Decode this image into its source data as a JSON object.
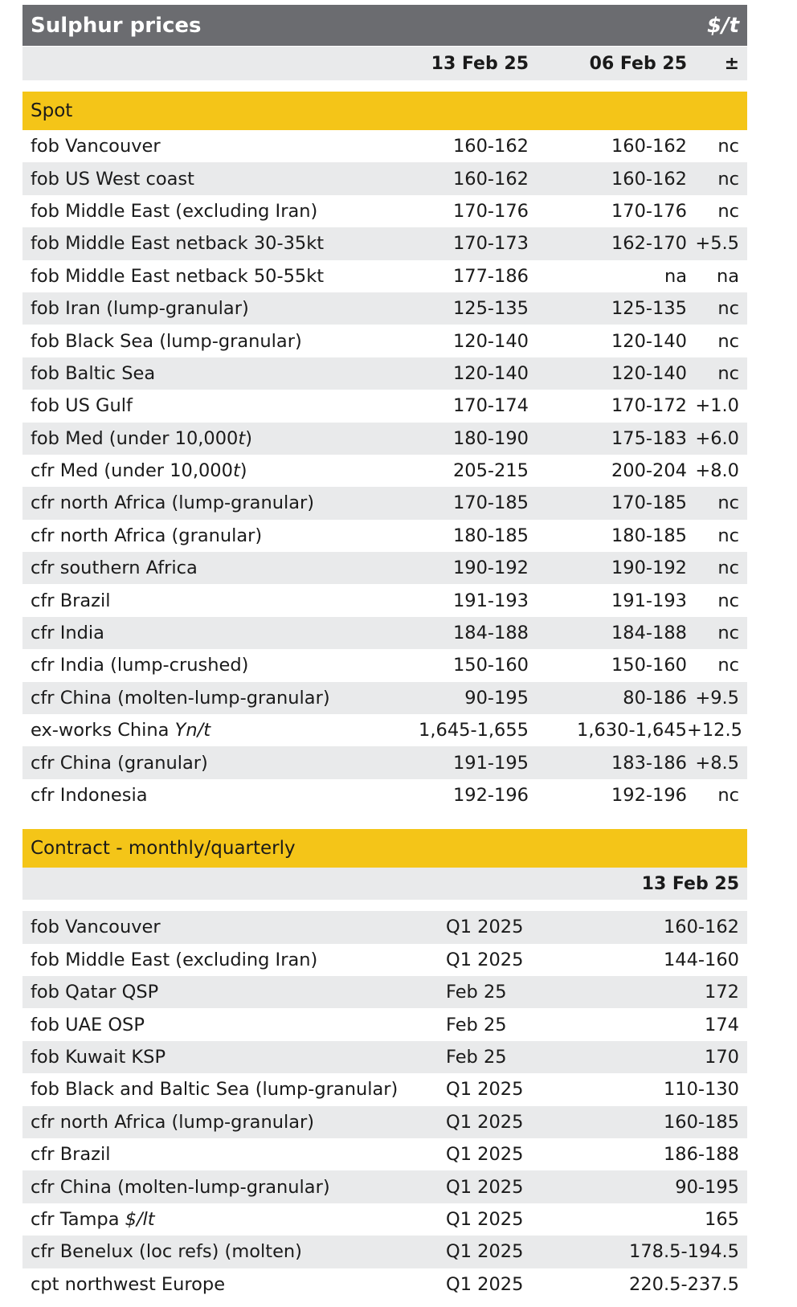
{
  "title": "Sulphur prices",
  "unit": "$/t",
  "columns": {
    "current": "13 Feb 25",
    "previous": "06 Feb 25",
    "change": "±"
  },
  "spot": {
    "label": "Spot",
    "rows": [
      {
        "name": "fob Vancouver",
        "cur": "160-162",
        "prev": "160-162",
        "chg": "nc"
      },
      {
        "name": "fob US West coast",
        "cur": "160-162",
        "prev": "160-162",
        "chg": "nc"
      },
      {
        "name": "fob Middle East (excluding Iran)",
        "cur": "170-176",
        "prev": "170-176",
        "chg": "nc"
      },
      {
        "name": "fob Middle East netback 30-35kt",
        "cur": "170-173",
        "prev": "162-170",
        "chg": "+5.5"
      },
      {
        "name": "fob Middle East netback 50-55kt",
        "cur": "177-186",
        "prev": "na",
        "chg": "na"
      },
      {
        "name": "fob Iran (lump-granular)",
        "cur": "125-135",
        "prev": "125-135",
        "chg": "nc"
      },
      {
        "name": "fob Black Sea (lump-granular)",
        "cur": "120-140",
        "prev": "120-140",
        "chg": "nc"
      },
      {
        "name": "fob Baltic Sea",
        "cur": "120-140",
        "prev": "120-140",
        "chg": "nc"
      },
      {
        "name": "fob US Gulf",
        "cur": "170-174",
        "prev": "170-172",
        "chg": "+1.0"
      },
      {
        "name": "fob Med (under 10,000",
        "name_it": "t",
        "name_end": ")",
        "cur": "180-190",
        "prev": "175-183",
        "chg": "+6.0"
      },
      {
        "name": "cfr Med (under 10,000",
        "name_it": "t",
        "name_end": ")",
        "cur": "205-215",
        "prev": "200-204",
        "chg": "+8.0"
      },
      {
        "name": "cfr north Africa (lump-granular)",
        "cur": "170-185",
        "prev": "170-185",
        "chg": "nc"
      },
      {
        "name": "cfr north Africa (granular)",
        "cur": "180-185",
        "prev": "180-185",
        "chg": "nc"
      },
      {
        "name": "cfr southern Africa",
        "cur": "190-192",
        "prev": "190-192",
        "chg": "nc"
      },
      {
        "name": "cfr Brazil",
        "cur": "191-193",
        "prev": "191-193",
        "chg": "nc"
      },
      {
        "name": "cfr India",
        "cur": "184-188",
        "prev": "184-188",
        "chg": "nc"
      },
      {
        "name": "cfr India (lump-crushed)",
        "cur": "150-160",
        "prev": "150-160",
        "chg": "nc"
      },
      {
        "name": "cfr China (molten-lump-granular)",
        "cur": "90-195",
        "prev": "80-186",
        "chg": "+9.5"
      },
      {
        "name": "ex-works China ",
        "name_it": "Yn/t",
        "name_end": "",
        "cur": "1,645-1,655",
        "prev": "1,630-1,645",
        "chg": "+12.5"
      },
      {
        "name": "cfr China (granular)",
        "cur": "191-195",
        "prev": "183-186",
        "chg": "+8.5"
      },
      {
        "name": "cfr Indonesia",
        "cur": "192-196",
        "prev": "192-196",
        "chg": "nc"
      }
    ]
  },
  "contract": {
    "label": "Contract - monthly/quarterly",
    "date": "13 Feb 25",
    "rows": [
      {
        "name": "fob Vancouver",
        "period": "Q1 2025",
        "price": "160-162"
      },
      {
        "name": "fob Middle East (excluding Iran)",
        "period": "Q1 2025",
        "price": "144-160"
      },
      {
        "name": "fob Qatar QSP",
        "period": "Feb 25",
        "price": "172"
      },
      {
        "name": "fob UAE OSP",
        "period": "Feb 25",
        "price": "174"
      },
      {
        "name": "fob Kuwait KSP",
        "period": "Feb 25",
        "price": "170"
      },
      {
        "name": "fob Black and Baltic Sea (lump-granular)",
        "period": "Q1 2025",
        "price": "110-130"
      },
      {
        "name": "cfr north Africa (lump-granular)",
        "period": "Q1 2025",
        "price": "160-185"
      },
      {
        "name": "cfr Brazil",
        "period": "Q1 2025",
        "price": "186-188"
      },
      {
        "name": "cfr China (molten-lump-granular)",
        "period": "Q1 2025",
        "price": "90-195"
      },
      {
        "name": "cfr Tampa ",
        "name_it": "$/lt",
        "name_end": "",
        "period": "Q1 2025",
        "price": "165"
      },
      {
        "name": "cfr Benelux (loc refs) (molten)",
        "period": "Q1 2025",
        "price": "178.5-194.5"
      },
      {
        "name": "cpt northwest Europe",
        "period": "Q1 2025",
        "price": "220.5-237.5"
      }
    ]
  }
}
